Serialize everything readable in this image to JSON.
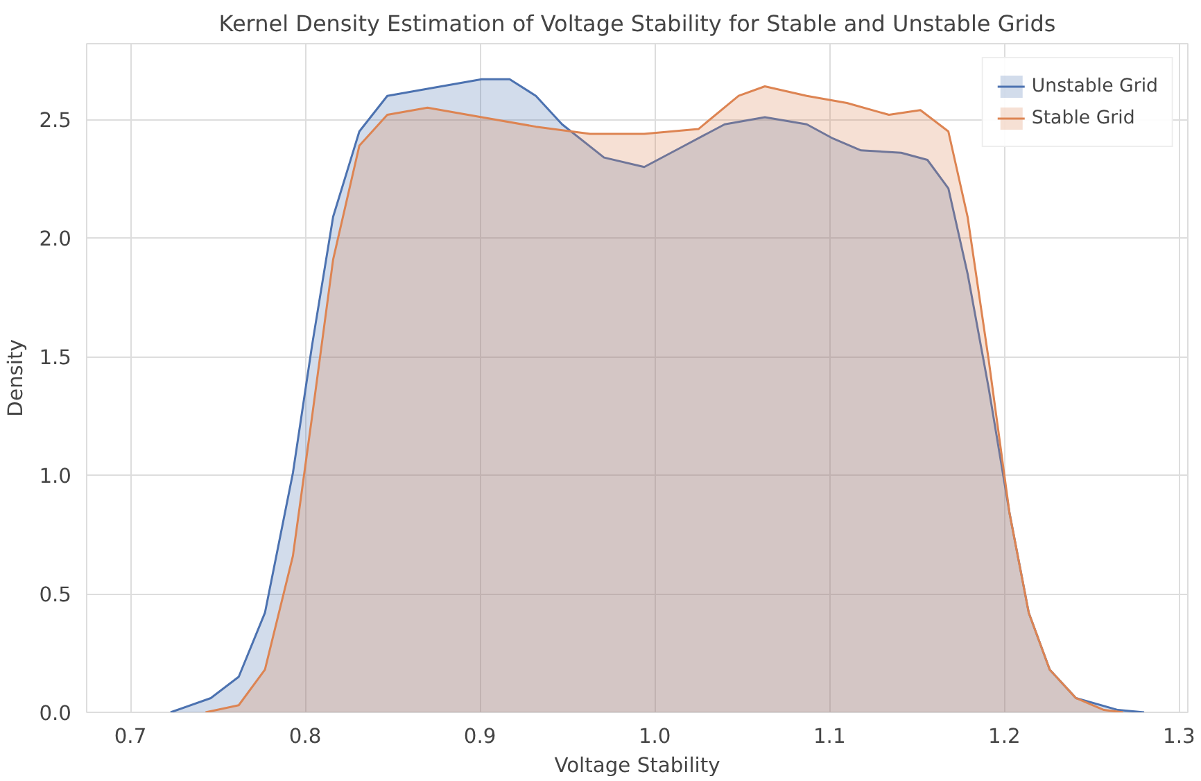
{
  "chart_data": {
    "type": "area",
    "title": "Kernel Density Estimation of Voltage Stability for Stable and Unstable Grids",
    "xlabel": "Voltage Stability",
    "ylabel": "Density",
    "xlim": [
      0.675,
      1.305
    ],
    "ylim": [
      0,
      2.82
    ],
    "xticks": [
      {
        "value": 0.7,
        "label": "0.7"
      },
      {
        "value": 0.8,
        "label": "0.8"
      },
      {
        "value": 0.9,
        "label": "0.9"
      },
      {
        "value": 1.0,
        "label": "1.0"
      },
      {
        "value": 1.1,
        "label": "1.1"
      },
      {
        "value": 1.2,
        "label": "1.2"
      },
      {
        "value": 1.3,
        "label": "1.3"
      }
    ],
    "yticks": [
      {
        "value": 0,
        "label": "0.0"
      },
      {
        "value": 0.5,
        "label": "0.5"
      },
      {
        "value": 1.0,
        "label": "1.0"
      },
      {
        "value": 1.5,
        "label": "1.5"
      },
      {
        "value": 2.0,
        "label": "2.0"
      },
      {
        "value": 2.5,
        "label": "2.5"
      }
    ],
    "grid": true,
    "legend": "top right",
    "series": [
      {
        "name": "Unstable Grid",
        "color": "#4c72b0",
        "x": [
          0.723,
          0.746,
          0.762,
          0.777,
          0.793,
          0.804,
          0.816,
          0.831,
          0.847,
          0.87,
          0.901,
          0.917,
          0.932,
          0.947,
          0.971,
          0.994,
          1.017,
          1.04,
          1.063,
          1.087,
          1.102,
          1.118,
          1.141,
          1.156,
          1.168,
          1.179,
          1.191,
          1.203,
          1.214,
          1.226,
          1.241,
          1.265,
          1.28
        ],
        "values": [
          0,
          0.06,
          0.15,
          0.42,
          1.01,
          1.55,
          2.09,
          2.45,
          2.6,
          2.63,
          2.67,
          2.67,
          2.6,
          2.48,
          2.34,
          2.3,
          2.39,
          2.48,
          2.51,
          2.48,
          2.42,
          2.37,
          2.36,
          2.33,
          2.21,
          1.85,
          1.37,
          0.84,
          0.42,
          0.18,
          0.06,
          0.01,
          0
        ]
      },
      {
        "name": "Stable Grid",
        "color": "#dd8452",
        "x": [
          0.743,
          0.762,
          0.777,
          0.793,
          0.804,
          0.816,
          0.831,
          0.847,
          0.87,
          0.901,
          0.932,
          0.963,
          0.994,
          1.025,
          1.048,
          1.063,
          1.087,
          1.11,
          1.134,
          1.152,
          1.168,
          1.179,
          1.191,
          1.203,
          1.214,
          1.226,
          1.241,
          1.257,
          1.268
        ],
        "values": [
          0,
          0.03,
          0.18,
          0.66,
          1.25,
          1.91,
          2.39,
          2.52,
          2.55,
          2.51,
          2.47,
          2.44,
          2.44,
          2.46,
          2.6,
          2.64,
          2.6,
          2.57,
          2.52,
          2.54,
          2.45,
          2.09,
          1.49,
          0.84,
          0.42,
          0.18,
          0.06,
          0.01,
          0
        ]
      }
    ]
  }
}
